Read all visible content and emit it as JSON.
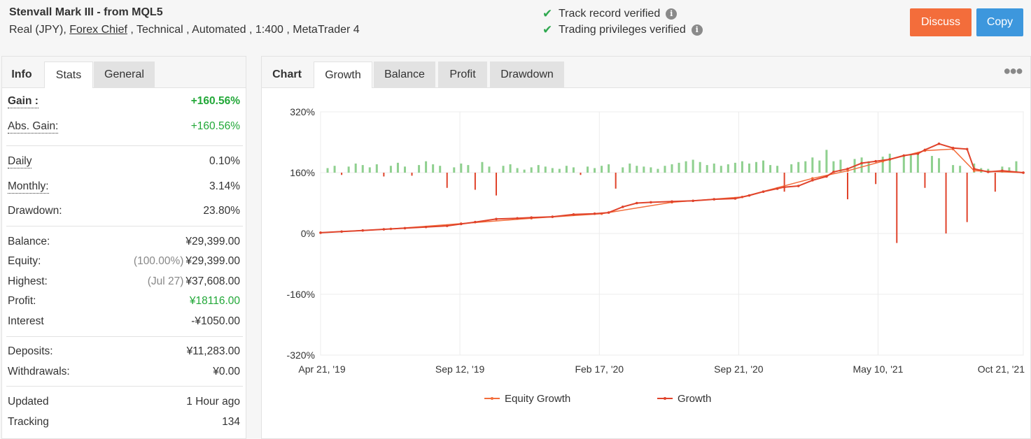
{
  "header": {
    "title": "Stenvall Mark III - from MQL5",
    "subtitle_prefix": "Real (JPY), ",
    "subtitle_link": "Forex Chief",
    "subtitle_suffix": " , Technical , Automated , 1:400 , MetaTrader 4",
    "verified_1": "Track record verified",
    "verified_2": "Trading privileges verified",
    "discuss_label": "Discuss",
    "copy_label": "Copy"
  },
  "left_tabs": [
    "Info",
    "Stats",
    "General"
  ],
  "stats": {
    "gain_label": "Gain :",
    "gain": "+160.56%",
    "abs_gain_label": "Abs. Gain:",
    "abs_gain": "+160.56%",
    "daily_label": "Daily",
    "daily": "0.10%",
    "monthly_label": "Monthly:",
    "monthly": "3.14%",
    "drawdown_label": "Drawdown:",
    "drawdown": "23.80%",
    "balance_label": "Balance:",
    "balance": "¥29,399.00",
    "equity_label": "Equity:",
    "equity_pct": "(100.00%)",
    "equity": "¥29,399.00",
    "highest_label": "Highest:",
    "highest_date": "(Jul 27)",
    "highest": "¥37,608.00",
    "profit_label": "Profit:",
    "profit": "¥18116.00",
    "interest_label": "Interest",
    "interest": "-¥1050.00",
    "deposits_label": "Deposits:",
    "deposits": "¥11,283.00",
    "withdrawals_label": "Withdrawals:",
    "withdrawals": "¥0.00",
    "updated_label": "Updated",
    "updated": "1 Hour ago",
    "tracking_label": "Tracking",
    "tracking": "134"
  },
  "chart_tabs": [
    "Chart",
    "Growth",
    "Balance",
    "Profit",
    "Drawdown"
  ],
  "colors": {
    "growth_line": "#e0432b",
    "equity_line": "#f36d3b",
    "positive_bar": "#8fd08f",
    "negative_bar": "#e0432b",
    "green_text": "#22a838",
    "discuss": "#f36d3b",
    "copy": "#3d97dd"
  },
  "chart_data": {
    "type": "line",
    "y_tick_labels": [
      "320%",
      "160%",
      "0%",
      "-160%",
      "-320%"
    ],
    "ylim": [
      -320,
      320
    ],
    "x_tick_labels": [
      "Apr 21, '19",
      "Sep 12, '19",
      "Feb 17, '20",
      "Sep 21, '20",
      "May 10, '21",
      "Oct 21, '21"
    ],
    "x_tick_positions": [
      0,
      0.1983,
      0.3967,
      0.595,
      0.7933,
      1.0
    ],
    "grid": true,
    "legend_position": "bottom",
    "series": [
      {
        "name": "Growth",
        "x": [
          0,
          0.03,
          0.06,
          0.09,
          0.12,
          0.15,
          0.18,
          0.2,
          0.22,
          0.25,
          0.28,
          0.3,
          0.33,
          0.36,
          0.39,
          0.41,
          0.43,
          0.45,
          0.47,
          0.5,
          0.53,
          0.56,
          0.59,
          0.61,
          0.63,
          0.65,
          0.66,
          0.68,
          0.7,
          0.72,
          0.73,
          0.75,
          0.77,
          0.79,
          0.81,
          0.83,
          0.85,
          0.86,
          0.88,
          0.9,
          0.92,
          0.93,
          0.95,
          0.97,
          1.0
        ],
        "y": [
          2,
          5,
          8,
          11,
          14,
          17,
          20,
          25,
          30,
          38,
          40,
          42,
          44,
          50,
          52,
          55,
          70,
          80,
          82,
          84,
          86,
          90,
          92,
          100,
          110,
          118,
          122,
          125,
          140,
          150,
          162,
          170,
          185,
          190,
          195,
          205,
          210,
          220,
          236,
          225,
          222,
          170,
          162,
          165,
          160
        ]
      },
      {
        "name": "Equity Growth",
        "x": [
          0,
          0.1,
          0.2,
          0.3,
          0.4,
          0.5,
          0.6,
          0.7,
          0.75,
          0.8,
          0.86,
          0.9,
          0.93,
          1.0
        ],
        "y": [
          2,
          12,
          26,
          40,
          52,
          82,
          96,
          145,
          165,
          190,
          218,
          222,
          165,
          160
        ]
      }
    ],
    "bars": {
      "x": [
        0.01,
        0.02,
        0.03,
        0.04,
        0.05,
        0.06,
        0.07,
        0.08,
        0.09,
        0.1,
        0.11,
        0.12,
        0.13,
        0.14,
        0.15,
        0.16,
        0.17,
        0.18,
        0.19,
        0.2,
        0.21,
        0.22,
        0.23,
        0.24,
        0.25,
        0.26,
        0.27,
        0.28,
        0.29,
        0.3,
        0.31,
        0.32,
        0.33,
        0.34,
        0.35,
        0.36,
        0.37,
        0.38,
        0.39,
        0.4,
        0.41,
        0.42,
        0.43,
        0.44,
        0.45,
        0.46,
        0.47,
        0.48,
        0.49,
        0.5,
        0.51,
        0.52,
        0.53,
        0.54,
        0.55,
        0.56,
        0.57,
        0.58,
        0.59,
        0.6,
        0.61,
        0.62,
        0.63,
        0.64,
        0.65,
        0.66,
        0.67,
        0.68,
        0.69,
        0.7,
        0.71,
        0.72,
        0.73,
        0.74,
        0.75,
        0.76,
        0.77,
        0.78,
        0.79,
        0.8,
        0.81,
        0.82,
        0.83,
        0.84,
        0.85,
        0.86,
        0.87,
        0.88,
        0.89,
        0.9,
        0.91,
        0.92,
        0.93,
        0.94,
        0.95,
        0.96,
        0.97,
        0.98,
        0.99
      ],
      "values": [
        12,
        18,
        -6,
        16,
        24,
        20,
        14,
        22,
        -10,
        18,
        26,
        16,
        -8,
        20,
        30,
        22,
        18,
        -40,
        14,
        24,
        20,
        -45,
        28,
        16,
        -60,
        18,
        22,
        12,
        8,
        14,
        20,
        16,
        12,
        10,
        18,
        14,
        -6,
        16,
        12,
        18,
        22,
        -42,
        14,
        24,
        18,
        16,
        14,
        10,
        18,
        22,
        26,
        30,
        34,
        28,
        20,
        24,
        18,
        22,
        26,
        30,
        24,
        28,
        32,
        20,
        18,
        -50,
        22,
        28,
        30,
        40,
        32,
        60,
        30,
        34,
        -70,
        36,
        40,
        30,
        -30,
        42,
        50,
        -185,
        46,
        48,
        52,
        -40,
        44,
        38,
        -160,
        20,
        18,
        -130,
        24,
        12,
        10,
        -50,
        16,
        14,
        30
      ]
    }
  }
}
